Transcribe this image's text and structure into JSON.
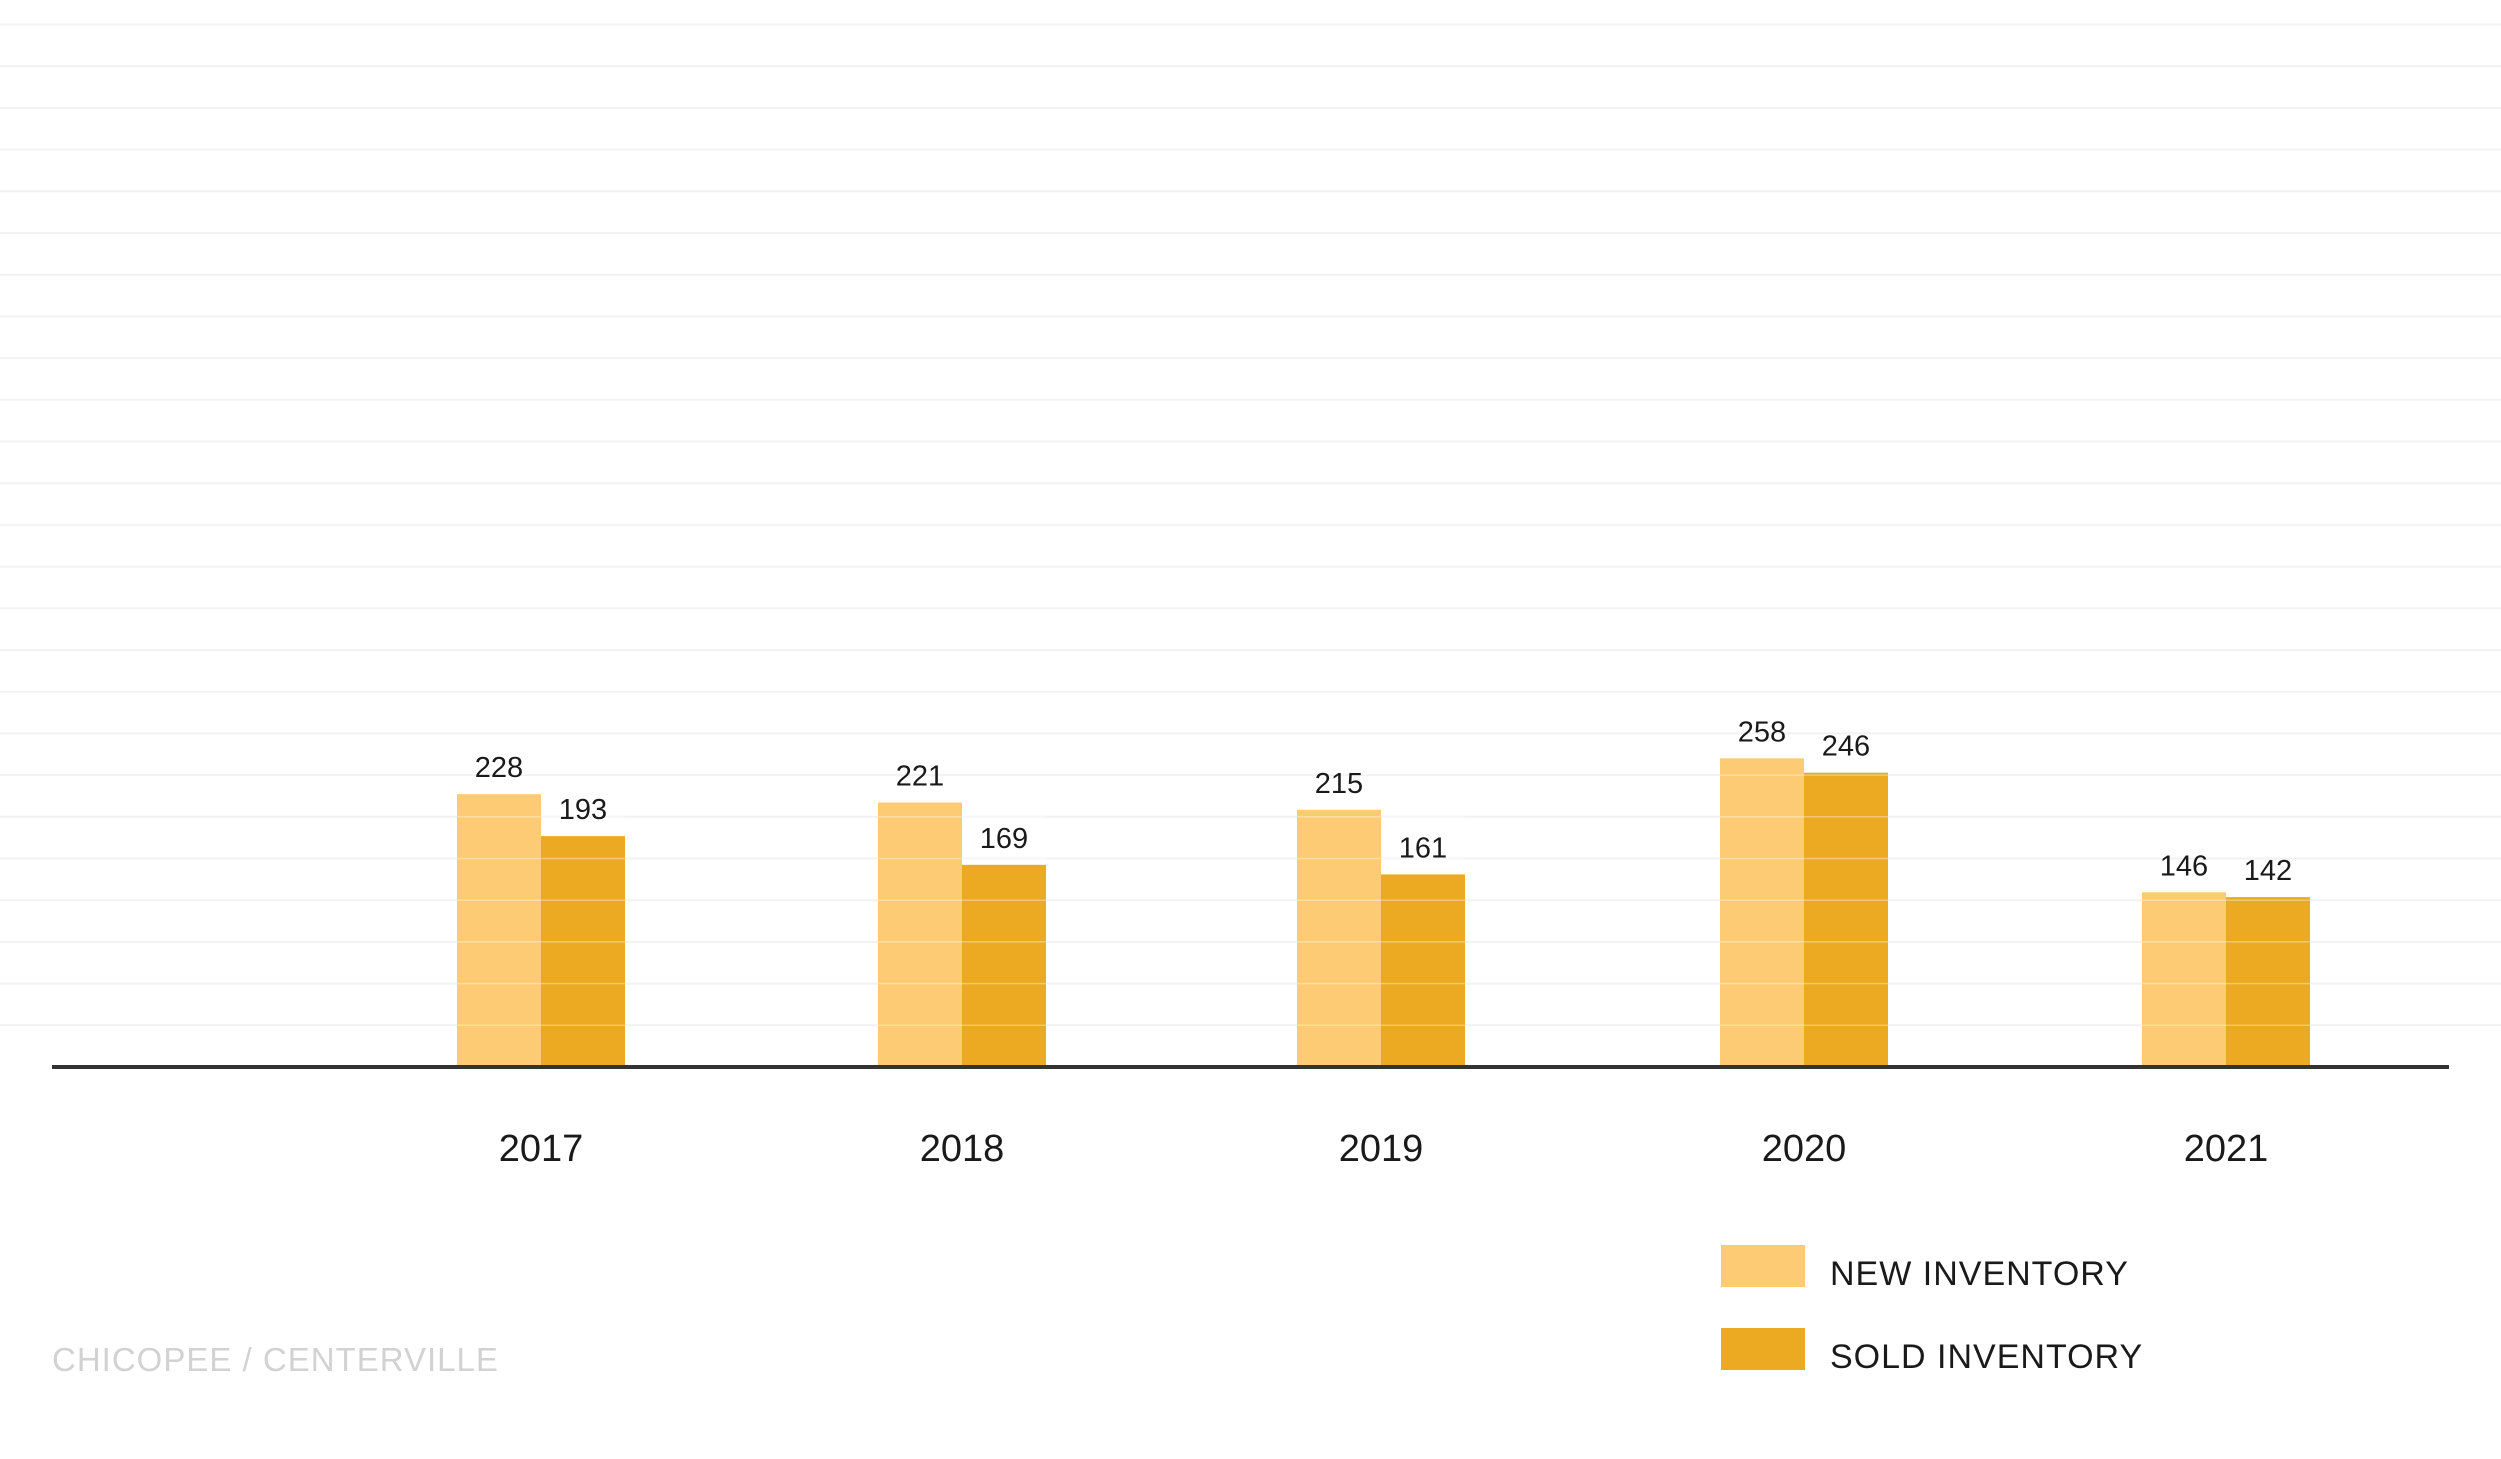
{
  "chart_data": {
    "type": "bar",
    "categories": [
      "2017",
      "2018",
      "2019",
      "2020",
      "2021"
    ],
    "series": [
      {
        "name": "NEW INVENTORY",
        "color": "#FCCB74",
        "values": [
          228,
          221,
          215,
          258,
          146
        ]
      },
      {
        "name": "SOLD INVENTORY",
        "color": "#EBAA22",
        "values": [
          193,
          169,
          161,
          246,
          142
        ]
      }
    ],
    "title": "",
    "xlabel": "",
    "ylabel": "",
    "ylim": [
      0,
      500
    ],
    "grid": true,
    "legend_position": "bottom-right",
    "data_labels": true
  },
  "footer": {
    "text": "CHICOPEE / CENTERVILLE"
  },
  "colors": {
    "axis": "#333333",
    "grid": "#f2f2f2",
    "footer": "#d2d2d2"
  }
}
